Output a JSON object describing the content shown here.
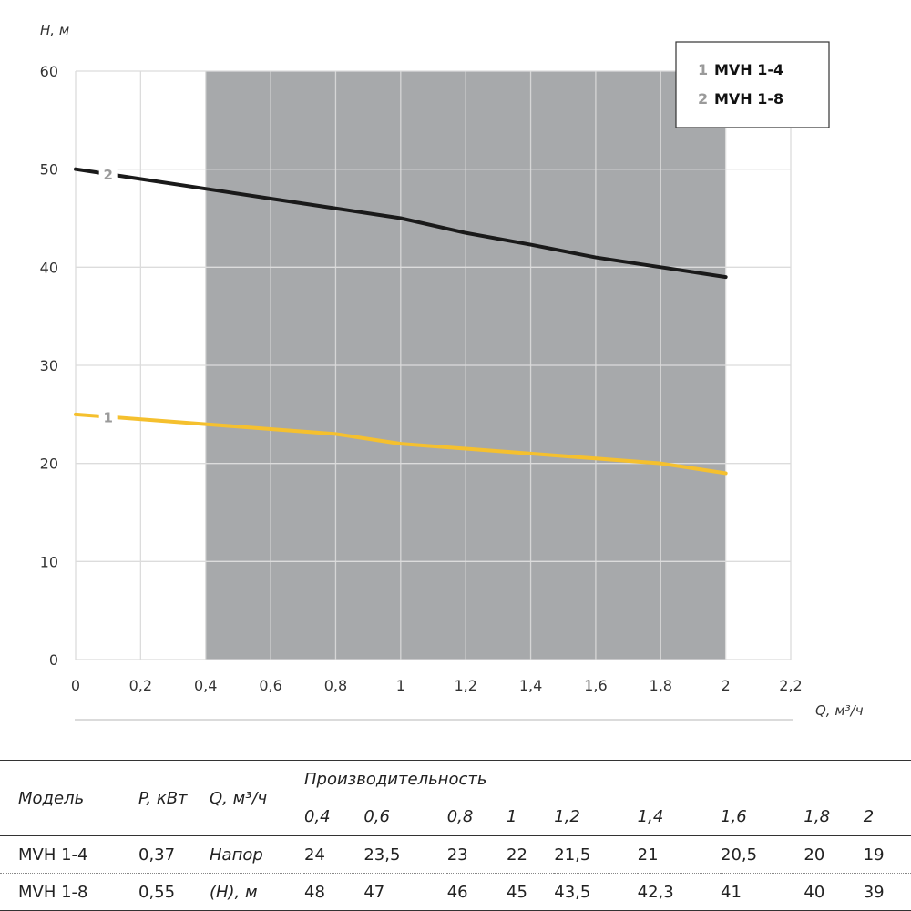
{
  "chart_data": {
    "type": "line",
    "xlabel": "Q, м³/ч",
    "ylabel": "H, м",
    "xlim": [
      0,
      2.2
    ],
    "ylim": [
      0,
      60
    ],
    "xticks": [
      "0",
      "0,2",
      "0,4",
      "0,6",
      "0,8",
      "1",
      "1,2",
      "1,4",
      "1,6",
      "1,8",
      "2",
      "2,2"
    ],
    "yticks": [
      "0",
      "10",
      "20",
      "30",
      "40",
      "50",
      "60"
    ],
    "grid": true,
    "shaded_range": [
      0.4,
      2.0
    ],
    "legend_position": "top-right",
    "series": [
      {
        "name": "MVH 1-4",
        "number": "1",
        "color": "#f5c02e",
        "x": [
          0,
          0.4,
          0.6,
          0.8,
          1.0,
          1.2,
          1.4,
          1.6,
          1.8,
          2.0
        ],
        "y": [
          25,
          24,
          23.5,
          23,
          22,
          21.5,
          21,
          20.5,
          20,
          19
        ]
      },
      {
        "name": "MVH 1-8",
        "number": "2",
        "color": "#1a1a1a",
        "x": [
          0,
          0.4,
          0.6,
          0.8,
          1.0,
          1.2,
          1.4,
          1.6,
          1.8,
          2.0
        ],
        "y": [
          50,
          48,
          47,
          46,
          45,
          43.5,
          42.3,
          41,
          40,
          39
        ]
      }
    ]
  },
  "table": {
    "col_model": "Модель",
    "col_power": "P, кВт",
    "col_q": "Q, м³/ч",
    "col_perf": "Производительность",
    "q_values": [
      "0,4",
      "0,6",
      "0,8",
      "1",
      "1,2",
      "1,4",
      "1,6",
      "1,8",
      "2"
    ],
    "head_label_1": "Напор",
    "head_label_2": "(H), м",
    "rows": [
      {
        "model": "MVH 1-4",
        "power": "0,37",
        "values": [
          "24",
          "23,5",
          "23",
          "22",
          "21,5",
          "21",
          "20,5",
          "20",
          "19"
        ]
      },
      {
        "model": "MVH 1-8",
        "power": "0,55",
        "values": [
          "48",
          "47",
          "46",
          "45",
          "43,5",
          "42,3",
          "41",
          "40",
          "39"
        ]
      }
    ]
  }
}
